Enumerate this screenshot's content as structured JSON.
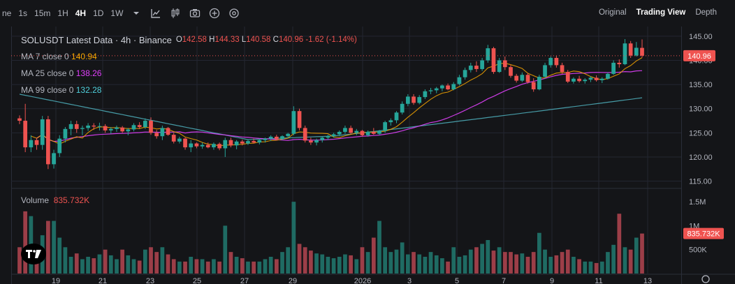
{
  "toolbar": {
    "timeframes": [
      "ne",
      "1s",
      "15m",
      "1H",
      "4H",
      "1D",
      "1W"
    ],
    "active_timeframe": "4H",
    "views": [
      "Original",
      "Trading View",
      "Depth"
    ],
    "active_view": "Trading View"
  },
  "legend": {
    "title": "SOLUSDT Latest Data · 4h · Binance",
    "o_label": "O",
    "o": "142.58",
    "h_label": "H",
    "h": "144.33",
    "l_label": "L",
    "l": "140.58",
    "c_label": "C",
    "c": "140.96",
    "change": "-1.62 (-1.14%)",
    "ma7_label": "MA 7 close 0",
    "ma7": "140.94",
    "ma25_label": "MA 25 close 0",
    "ma25": "138.26",
    "ma99_label": "MA 99 close 0",
    "ma99": "132.28"
  },
  "volume": {
    "label": "Volume",
    "value": "835.732K"
  },
  "colors": {
    "up": "#26a69a",
    "down": "#ef5350",
    "ma7": "#f7a600",
    "ma25": "#e040fb",
    "ma99": "#4fb3bf",
    "vol_up": "#1f6b63",
    "vol_down": "#9c3e48",
    "bg": "#141518"
  },
  "chart_data": [
    {
      "type": "candlestick",
      "title": "SOLUSDT Latest Data · 4h · Binance",
      "yaxis_ticks": [
        "145.00",
        "140.00",
        "135.00",
        "130.00",
        "125.00",
        "120.00",
        "115.00"
      ],
      "ylim": [
        113.5,
        147.0
      ],
      "last_price": "140.96",
      "xaxis_ticks": [
        "19",
        "21",
        "23",
        "25",
        "27",
        "29",
        "2026",
        "3",
        "5",
        "7",
        "9",
        "11",
        "13"
      ],
      "grid": true,
      "ohlc": [
        [
          128.0,
          128.6,
          126.8,
          127.5
        ],
        [
          127.5,
          131.0,
          121.0,
          122.0
        ],
        [
          122.0,
          124.5,
          121.0,
          123.5
        ],
        [
          123.5,
          124.0,
          121.5,
          122.5
        ],
        [
          122.5,
          128.5,
          121.5,
          127.8
        ],
        [
          127.8,
          128.5,
          117.5,
          118.5
        ],
        [
          118.5,
          121.5,
          117.6,
          120.8
        ],
        [
          120.8,
          124.5,
          120.0,
          123.8
        ],
        [
          123.8,
          126.2,
          123.0,
          125.8
        ],
        [
          125.8,
          127.5,
          124.5,
          126.8
        ],
        [
          126.8,
          127.5,
          125.0,
          125.8
        ],
        [
          125.8,
          126.5,
          124.5,
          126.0
        ],
        [
          126.0,
          127.0,
          125.4,
          126.5
        ],
        [
          126.5,
          127.0,
          125.6,
          126.3
        ],
        [
          126.3,
          127.1,
          125.5,
          126.4
        ],
        [
          126.4,
          126.8,
          125.0,
          125.5
        ],
        [
          125.5,
          126.2,
          124.8,
          125.8
        ],
        [
          125.8,
          126.5,
          125.2,
          126.1
        ],
        [
          126.1,
          126.4,
          125.0,
          125.3
        ],
        [
          125.3,
          126.0,
          124.5,
          125.7
        ],
        [
          125.7,
          127.0,
          125.3,
          126.6
        ],
        [
          126.6,
          127.2,
          125.8,
          126.2
        ],
        [
          126.2,
          128.0,
          125.8,
          127.5
        ],
        [
          127.5,
          128.2,
          124.6,
          125.0
        ],
        [
          125.0,
          125.6,
          123.8,
          124.3
        ],
        [
          124.3,
          126.5,
          123.5,
          126.0
        ],
        [
          126.0,
          126.2,
          124.4,
          124.6
        ],
        [
          124.6,
          125.0,
          122.8,
          123.2
        ],
        [
          123.2,
          124.2,
          122.8,
          123.8
        ],
        [
          123.8,
          124.0,
          121.5,
          122.0
        ],
        [
          122.0,
          123.5,
          121.0,
          122.8
        ],
        [
          122.8,
          123.0,
          121.8,
          122.2
        ],
        [
          122.2,
          123.0,
          121.7,
          122.5
        ],
        [
          122.5,
          123.0,
          121.8,
          122.0
        ],
        [
          122.0,
          123.0,
          121.5,
          122.7
        ],
        [
          122.7,
          123.0,
          121.4,
          121.8
        ],
        [
          121.8,
          124.0,
          120.0,
          123.5
        ],
        [
          123.5,
          124.0,
          122.0,
          122.4
        ],
        [
          122.4,
          123.5,
          121.6,
          123.2
        ],
        [
          123.2,
          123.6,
          122.4,
          122.8
        ],
        [
          122.8,
          123.6,
          122.5,
          123.3
        ],
        [
          123.3,
          123.8,
          122.8,
          123.0
        ],
        [
          123.0,
          123.8,
          122.6,
          123.5
        ],
        [
          123.5,
          124.0,
          123.0,
          123.8
        ],
        [
          123.8,
          124.5,
          123.3,
          124.2
        ],
        [
          124.2,
          124.6,
          123.4,
          123.7
        ],
        [
          123.7,
          124.5,
          123.5,
          124.3
        ],
        [
          124.3,
          125.0,
          124.0,
          124.8
        ],
        [
          124.8,
          130.5,
          124.5,
          129.5
        ],
        [
          129.5,
          130.0,
          125.5,
          126.0
        ],
        [
          126.0,
          126.5,
          123.0,
          123.4
        ],
        [
          123.4,
          124.0,
          122.5,
          123.0
        ],
        [
          123.0,
          123.8,
          122.4,
          123.5
        ],
        [
          123.5,
          124.3,
          123.0,
          124.0
        ],
        [
          124.0,
          124.6,
          123.5,
          124.3
        ],
        [
          124.3,
          125.0,
          124.0,
          124.7
        ],
        [
          124.7,
          125.5,
          124.3,
          125.2
        ],
        [
          125.2,
          126.5,
          124.8,
          126.0
        ],
        [
          126.0,
          126.5,
          124.8,
          125.0
        ],
        [
          125.0,
          125.8,
          124.5,
          125.4
        ],
        [
          125.4,
          125.6,
          124.2,
          124.5
        ],
        [
          124.5,
          125.5,
          124.2,
          125.2
        ],
        [
          125.2,
          126.0,
          124.6,
          124.8
        ],
        [
          124.8,
          125.6,
          124.5,
          125.4
        ],
        [
          125.4,
          127.5,
          125.0,
          127.2
        ],
        [
          127.2,
          128.0,
          126.5,
          127.6
        ],
        [
          127.6,
          129.5,
          127.0,
          129.2
        ],
        [
          129.2,
          131.5,
          128.8,
          131.0
        ],
        [
          131.0,
          133.0,
          130.5,
          132.5
        ],
        [
          132.5,
          133.0,
          130.8,
          131.2
        ],
        [
          131.2,
          132.8,
          130.9,
          132.4
        ],
        [
          132.4,
          134.0,
          132.0,
          133.6
        ],
        [
          133.6,
          134.3,
          133.0,
          133.8
        ],
        [
          133.8,
          134.5,
          133.2,
          134.2
        ],
        [
          134.2,
          135.0,
          133.6,
          134.8
        ],
        [
          134.8,
          135.2,
          133.8,
          134.0
        ],
        [
          134.0,
          135.5,
          133.8,
          135.1
        ],
        [
          135.1,
          137.0,
          134.8,
          136.5
        ],
        [
          136.5,
          138.5,
          136.0,
          138.0
        ],
        [
          138.0,
          139.5,
          137.5,
          138.9
        ],
        [
          138.9,
          139.8,
          137.6,
          138.2
        ],
        [
          138.2,
          140.5,
          137.8,
          140.0
        ],
        [
          140.0,
          143.2,
          139.5,
          142.5
        ],
        [
          142.5,
          142.8,
          137.2,
          137.6
        ],
        [
          137.6,
          140.5,
          137.4,
          140.0
        ],
        [
          140.0,
          140.8,
          138.0,
          138.6
        ],
        [
          138.6,
          139.0,
          136.4,
          136.8
        ],
        [
          136.8,
          137.2,
          135.4,
          135.8
        ],
        [
          135.8,
          137.5,
          135.5,
          137.0
        ],
        [
          137.0,
          137.4,
          135.2,
          135.5
        ],
        [
          135.5,
          136.3,
          133.5,
          134.0
        ],
        [
          134.0,
          137.0,
          133.8,
          136.6
        ],
        [
          136.6,
          139.5,
          136.2,
          139.0
        ],
        [
          139.0,
          140.8,
          138.5,
          140.5
        ],
        [
          140.5,
          141.0,
          138.5,
          139.0
        ],
        [
          139.0,
          139.5,
          137.2,
          137.6
        ],
        [
          137.6,
          138.0,
          135.3,
          135.6
        ],
        [
          135.6,
          136.5,
          135.2,
          136.2
        ],
        [
          136.2,
          136.8,
          135.4,
          135.7
        ],
        [
          135.7,
          136.3,
          135.2,
          136.0
        ],
        [
          136.0,
          136.7,
          135.5,
          136.4
        ],
        [
          136.4,
          136.9,
          135.6,
          135.9
        ],
        [
          135.9,
          136.5,
          135.3,
          136.2
        ],
        [
          136.2,
          137.5,
          136.0,
          137.2
        ],
        [
          137.2,
          140.0,
          137.0,
          139.5
        ],
        [
          139.5,
          140.2,
          138.5,
          139.2
        ],
        [
          139.2,
          144.4,
          139.0,
          143.5
        ],
        [
          143.5,
          144.0,
          140.5,
          141.0
        ],
        [
          141.0,
          143.8,
          140.8,
          142.6
        ],
        [
          142.58,
          144.33,
          140.58,
          140.96
        ]
      ],
      "volume": [
        0.55,
        1.3,
        1.2,
        0.55,
        0.8,
        1.1,
        1.1,
        0.75,
        0.55,
        0.35,
        0.42,
        0.3,
        0.35,
        0.32,
        0.4,
        0.5,
        0.38,
        0.3,
        0.5,
        0.38,
        0.3,
        0.27,
        0.5,
        0.55,
        0.45,
        0.55,
        0.4,
        0.3,
        0.25,
        0.25,
        0.35,
        0.3,
        0.3,
        0.25,
        0.3,
        0.25,
        1.0,
        0.45,
        0.35,
        0.32,
        0.25,
        0.25,
        0.25,
        0.3,
        0.35,
        0.3,
        0.45,
        0.55,
        1.5,
        0.62,
        0.55,
        0.48,
        0.42,
        0.4,
        0.35,
        0.32,
        0.35,
        0.4,
        0.38,
        0.3,
        0.55,
        0.45,
        0.75,
        1.1,
        0.55,
        0.45,
        0.5,
        0.65,
        0.4,
        0.45,
        0.4,
        0.35,
        0.45,
        0.38,
        0.32,
        0.25,
        0.55,
        0.35,
        0.38,
        0.5,
        0.55,
        0.62,
        0.7,
        0.48,
        0.55,
        0.45,
        0.45,
        0.4,
        0.42,
        0.35,
        0.45,
        0.85,
        0.5,
        0.35,
        0.38,
        0.45,
        0.5,
        0.35,
        0.3,
        0.25,
        0.25,
        0.22,
        0.25,
        0.45,
        0.6,
        1.25,
        0.55,
        0.5,
        0.75,
        0.836
      ],
      "vol_axis_ticks": [
        "1.5M",
        "1M",
        "500K"
      ],
      "volume_last": "835.732K"
    }
  ]
}
